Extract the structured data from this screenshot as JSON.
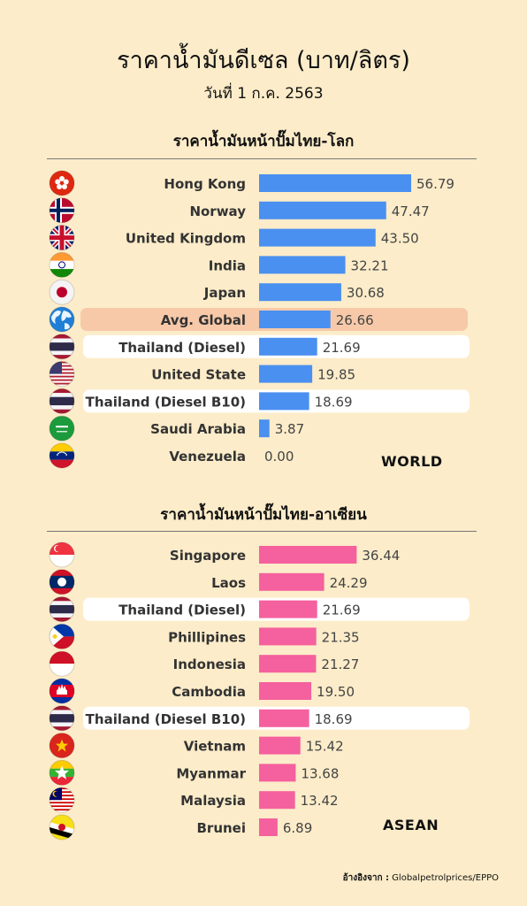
{
  "header": {
    "title": "ราคาน้ำมันดีเซล (บาท/ลิตร)",
    "date": "วันที่ 1 ก.ค. 2563"
  },
  "colors": {
    "background": "#fcecc9",
    "world_bar": "#4a90f0",
    "asean_bar": "#f5609e",
    "avg_highlight": "#f7c9a8",
    "thai_highlight": "#ffffff"
  },
  "chart_data": [
    {
      "type": "bar",
      "orientation": "horizontal",
      "title": "ราคาน้ำมันหน้าปั๊มไทย-โลก",
      "tag": "WORLD",
      "categories": [
        "Hong Kong",
        "Norway",
        "United Kingdom",
        "India",
        "Japan",
        "Avg. Global",
        "Thailand (Diesel)",
        "United State",
        "Thailand (Diesel B10)",
        "Saudi Arabia",
        "Venezuela"
      ],
      "values": [
        56.79,
        47.47,
        43.5,
        32.21,
        30.68,
        26.66,
        21.69,
        19.85,
        18.69,
        3.87,
        0.0
      ],
      "labels": [
        "56.79",
        "47.47",
        "43.50",
        "32.21",
        "30.68",
        "26.66",
        "21.69",
        "19.85",
        "18.69",
        "3.87",
        "0.00"
      ],
      "highlight": [
        "",
        "",
        "",
        "",
        "",
        "avg",
        "thai",
        "",
        "thai",
        "",
        ""
      ],
      "flags": [
        "hongkong-flag-icon",
        "norway-flag-icon",
        "uk-flag-icon",
        "india-flag-icon",
        "japan-flag-icon",
        "globe-icon",
        "thailand-flag-icon",
        "usa-flag-icon",
        "thailand-flag-icon",
        "saudi-flag-icon",
        "venezuela-flag-icon"
      ],
      "xlim": [
        0,
        60
      ]
    },
    {
      "type": "bar",
      "orientation": "horizontal",
      "title": "ราคาน้ำมันหน้าปั๊มไทย-อาเซียน",
      "tag": "ASEAN",
      "categories": [
        "Singapore",
        "Laos",
        "Thailand (Diesel)",
        "Phillipines",
        "Indonesia",
        "Cambodia",
        "Thailand (Diesel B10)",
        "Vietnam",
        "Myanmar",
        "Malaysia",
        "Brunei"
      ],
      "values": [
        36.44,
        24.29,
        21.69,
        21.35,
        21.27,
        19.5,
        18.69,
        15.42,
        13.68,
        13.42,
        6.89
      ],
      "labels": [
        "36.44",
        "24.29",
        "21.69",
        "21.35",
        "21.27",
        "19.50",
        "18.69",
        "15.42",
        "13.68",
        "13.42",
        "6.89"
      ],
      "highlight": [
        "",
        "",
        "thai",
        "",
        "",
        "",
        "thai",
        "",
        "",
        "",
        ""
      ],
      "flags": [
        "singapore-flag-icon",
        "laos-flag-icon",
        "thailand-flag-icon",
        "philippines-flag-icon",
        "indonesia-flag-icon",
        "cambodia-flag-icon",
        "thailand-flag-icon",
        "vietnam-flag-icon",
        "myanmar-flag-icon",
        "malaysia-flag-icon",
        "brunei-flag-icon"
      ],
      "xlim": [
        0,
        60
      ]
    }
  ],
  "footer": {
    "source_label": "อ้างอิงจาก :",
    "source_value": "Globalpetrolprices/EPPO"
  }
}
